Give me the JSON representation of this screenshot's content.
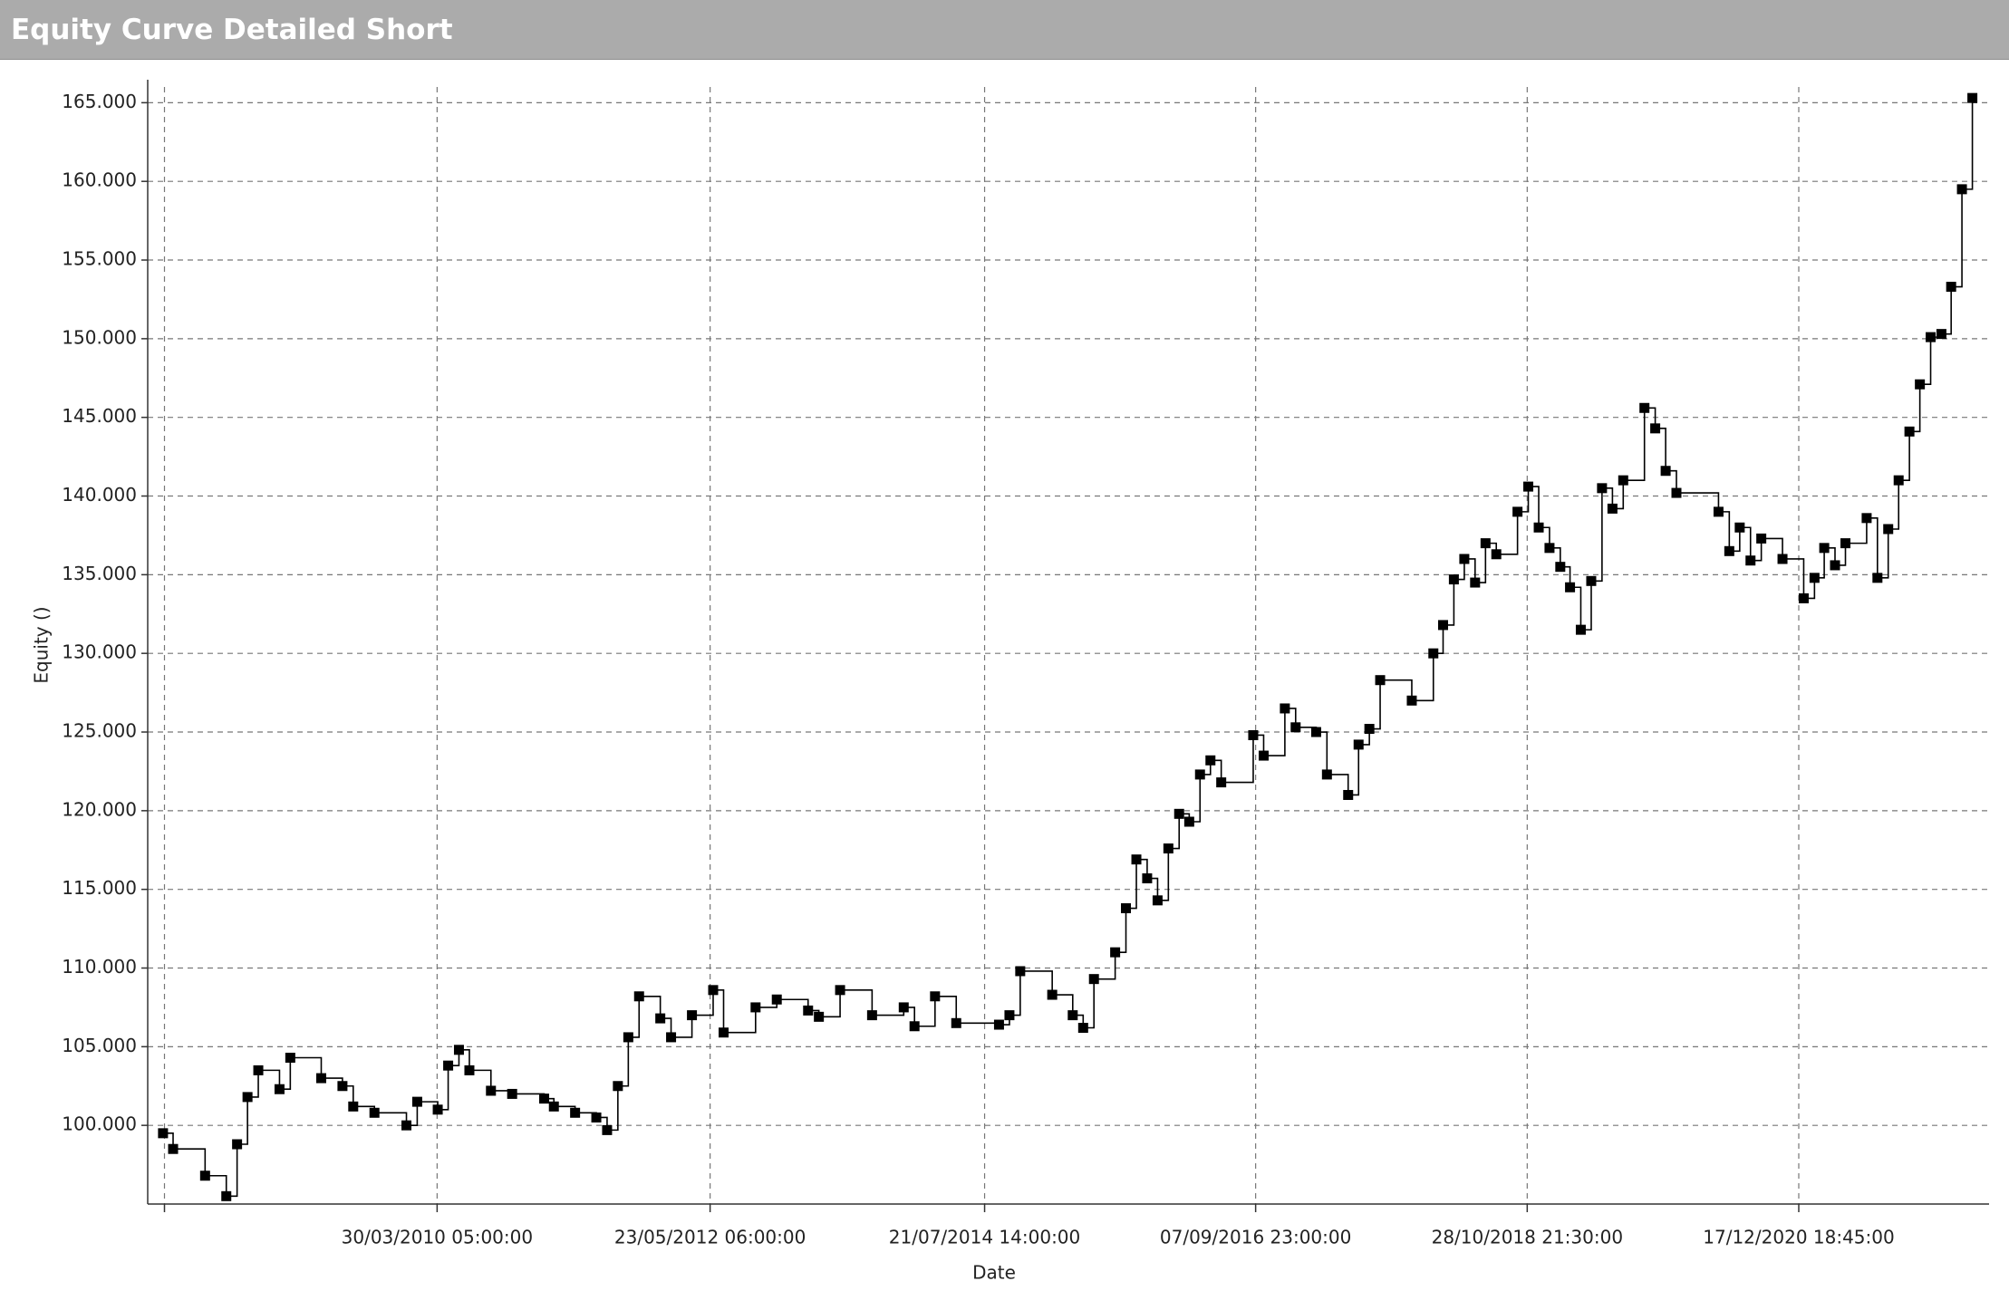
{
  "chart_data": {
    "type": "line",
    "title": "Equity Curve Detailed Short",
    "xlabel": "Date",
    "ylabel": "Equity ()",
    "color": "#000000",
    "grid": true,
    "xlim": [
      "2007-12-19",
      "2022-06-18"
    ],
    "xticks": [
      {
        "value": "2008-02-05T05:00",
        "label": null
      },
      {
        "value": "2010-03-30T05:00",
        "label": "30/03/2010 05:00:00"
      },
      {
        "value": "2012-05-23T06:00",
        "label": "23/05/2012 06:00:00"
      },
      {
        "value": "2014-07-21T14:00",
        "label": "21/07/2014 14:00:00"
      },
      {
        "value": "2016-09-07T23:00",
        "label": "07/09/2016 23:00:00"
      },
      {
        "value": "2018-10-28T21:30",
        "label": "28/10/2018 21:30:00"
      },
      {
        "value": "2020-12-17T18:45",
        "label": "17/12/2020 18:45:00"
      }
    ],
    "ylim": [
      95000,
      166000
    ],
    "yticks": [
      {
        "value": 100000,
        "label": "100.000"
      },
      {
        "value": 105000,
        "label": "105.000"
      },
      {
        "value": 110000,
        "label": "110.000"
      },
      {
        "value": 115000,
        "label": "115.000"
      },
      {
        "value": 120000,
        "label": "120.000"
      },
      {
        "value": 125000,
        "label": "125.000"
      },
      {
        "value": 130000,
        "label": "130.000"
      },
      {
        "value": 135000,
        "label": "135.000"
      },
      {
        "value": 140000,
        "label": "140.000"
      },
      {
        "value": 145000,
        "label": "145.000"
      },
      {
        "value": 150000,
        "label": "150.000"
      },
      {
        "value": 155000,
        "label": "155.000"
      },
      {
        "value": 160000,
        "label": "160.000"
      },
      {
        "value": 165000,
        "label": "165.000"
      }
    ],
    "x": [
      "2008-02",
      "2008-03",
      "2008-06",
      "2008-08",
      "2008-09",
      "2008-10",
      "2008-11",
      "2009-01",
      "2009-02",
      "2009-05",
      "2009-07",
      "2009-08",
      "2009-10",
      "2010-01",
      "2010-02",
      "2010-04",
      "2010-05",
      "2010-06",
      "2010-07",
      "2010-09",
      "2010-11",
      "2011-02",
      "2011-03",
      "2011-05",
      "2011-07",
      "2011-08",
      "2011-09",
      "2011-10",
      "2011-11",
      "2012-01",
      "2012-02",
      "2012-04",
      "2012-06",
      "2012-07",
      "2012-10",
      "2012-12",
      "2013-03",
      "2013-04",
      "2013-06",
      "2013-09",
      "2013-12",
      "2014-01",
      "2014-03",
      "2014-05",
      "2014-09",
      "2014-10",
      "2014-11",
      "2015-02",
      "2015-04",
      "2015-05",
      "2015-06",
      "2015-08",
      "2015-09",
      "2015-10",
      "2015-11",
      "2015-12",
      "2016-01",
      "2016-02",
      "2016-03",
      "2016-04",
      "2016-05",
      "2016-06",
      "2016-09",
      "2016-10",
      "2016-12",
      "2017-01",
      "2017-03",
      "2017-04",
      "2017-06",
      "2017-07",
      "2017-08",
      "2017-09",
      "2017-12",
      "2018-02",
      "2018-03",
      "2018-04",
      "2018-05",
      "2018-06",
      "2018-07",
      "2018-08",
      "2018-10",
      "2018-11",
      "2018-12",
      "2019-01",
      "2019-02",
      "2019-03",
      "2019-04",
      "2019-05",
      "2019-06",
      "2019-07",
      "2019-08",
      "2019-10",
      "2019-11",
      "2019-12",
      "2020-01",
      "2020-05",
      "2020-06",
      "2020-07",
      "2020-08",
      "2020-09",
      "2020-11",
      "2021-01",
      "2021-02",
      "2021-03",
      "2021-04",
      "2021-05",
      "2021-07",
      "2021-08",
      "2021-09",
      "2021-10",
      "2021-11",
      "2021-12",
      "2022-01",
      "2022-02",
      "2022-03",
      "2022-04",
      "2022-05"
    ],
    "values": [
      99500,
      98500,
      96800,
      95500,
      98800,
      101800,
      103500,
      102300,
      104300,
      103000,
      102500,
      101200,
      100800,
      100000,
      101500,
      101000,
      103800,
      104800,
      103500,
      102200,
      102000,
      101700,
      101200,
      100800,
      100500,
      99700,
      102500,
      105600,
      108200,
      106800,
      105600,
      107000,
      108600,
      105900,
      107500,
      108000,
      107300,
      106900,
      108600,
      107000,
      107500,
      106300,
      108200,
      106500,
      106400,
      107000,
      109800,
      108300,
      107000,
      106200,
      109300,
      111000,
      113800,
      116900,
      115700,
      114300,
      117600,
      119800,
      119300,
      122300,
      123200,
      121800,
      124800,
      123500,
      126500,
      125300,
      125000,
      122300,
      121000,
      124200,
      125200,
      128300,
      127000,
      130000,
      131800,
      134700,
      136000,
      134500,
      137000,
      136300,
      139000,
      140600,
      138000,
      136700,
      135500,
      134200,
      131500,
      134600,
      140500,
      139200,
      141000,
      145600,
      144300,
      141600,
      140200,
      139000,
      136500,
      138000,
      135900,
      137300,
      136000,
      133500,
      134800,
      136700,
      135600,
      137000,
      138600,
      134800,
      137900,
      141000,
      144100,
      147100,
      150100,
      150300,
      153300,
      159500,
      165300
    ]
  }
}
